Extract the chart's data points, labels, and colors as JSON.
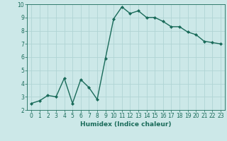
{
  "x": [
    0,
    1,
    2,
    3,
    4,
    5,
    6,
    7,
    8,
    9,
    10,
    11,
    12,
    13,
    14,
    15,
    16,
    17,
    18,
    19,
    20,
    21,
    22,
    23
  ],
  "y": [
    2.5,
    2.7,
    3.1,
    3.0,
    4.4,
    2.5,
    4.3,
    3.7,
    2.8,
    5.9,
    8.9,
    9.8,
    9.3,
    9.5,
    9.0,
    9.0,
    8.7,
    8.3,
    8.3,
    7.9,
    7.7,
    7.2,
    7.1,
    7.0
  ],
  "line_color": "#1a6b5a",
  "marker": "D",
  "marker_size": 2,
  "bg_color": "#cce8e8",
  "grid_color": "#b0d4d4",
  "xlabel": "Humidex (Indice chaleur)",
  "xlim": [
    -0.5,
    23.5
  ],
  "ylim": [
    2,
    10
  ],
  "yticks": [
    2,
    3,
    4,
    5,
    6,
    7,
    8,
    9,
    10
  ],
  "xticks": [
    0,
    1,
    2,
    3,
    4,
    5,
    6,
    7,
    8,
    9,
    10,
    11,
    12,
    13,
    14,
    15,
    16,
    17,
    18,
    19,
    20,
    21,
    22,
    23
  ],
  "tick_fontsize": 5.5,
  "xlabel_fontsize": 6.5,
  "line_width": 1.0
}
